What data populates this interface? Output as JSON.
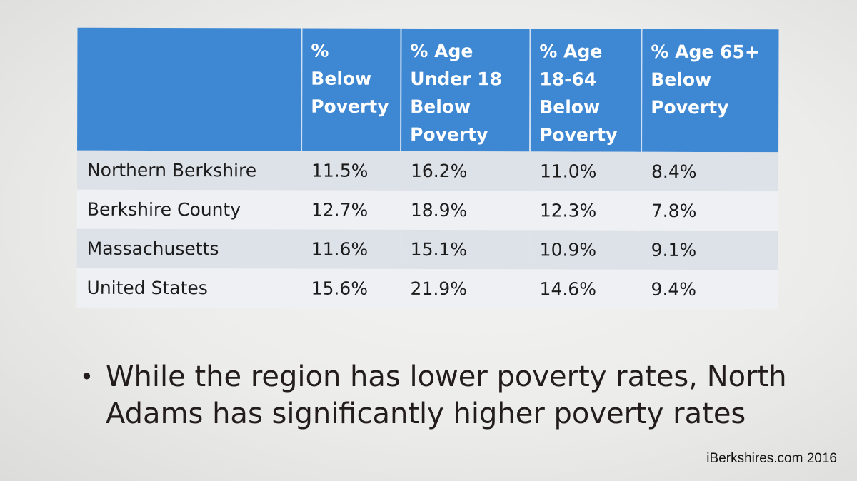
{
  "table": {
    "headers": [
      "",
      "%\nBelow\nPoverty",
      "% Age\nUnder 18\nBelow\nPoverty",
      "% Age\n18-64\nBelow\nPoverty",
      "% Age 65+\nBelow\nPoverty"
    ],
    "rows": [
      [
        "Northern Berkshire",
        "11.5%",
        "16.2%",
        "11.0%",
        "8.4%"
      ],
      [
        "Berkshire County",
        "12.7%",
        "18.9%",
        "12.3%",
        "7.8%"
      ],
      [
        "Massachusetts",
        "11.6%",
        "15.1%",
        "10.9%",
        "9.1%"
      ],
      [
        "United States",
        "15.6%",
        "21.9%",
        "14.6%",
        "9.4%"
      ]
    ]
  },
  "bullet": {
    "marker": "•",
    "text": "While the region has lower poverty rates, North Adams has significantly higher poverty rates"
  },
  "credit": "iBerkshires.com 2016",
  "colors": {
    "header_bg": "#3d87d3",
    "row_dark": "#dde1e8",
    "row_light": "#eef0f3"
  }
}
